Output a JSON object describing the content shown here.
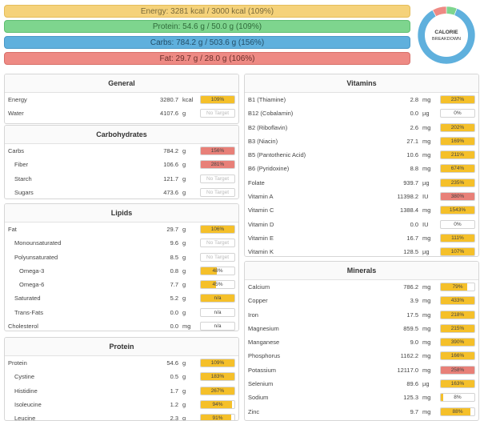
{
  "summary": {
    "energy": "Energy: 3281 kcal / 3000 kcal (109%)",
    "protein": "Protein: 54.6 g / 50.0 g (109%)",
    "carbs": "Carbs: 784.2 g / 503.6 g (156%)",
    "fat": "Fat: 29.7 g / 28.0 g (106%)"
  },
  "donut": {
    "label_line1": "CALORIE",
    "label_line2": "BREAKDOWN",
    "segments": [
      {
        "name": "protein",
        "fraction": 0.06,
        "color": "#7ed58e"
      },
      {
        "name": "carbs",
        "fraction": 0.86,
        "color": "#5fb0dd"
      },
      {
        "name": "fat",
        "fraction": 0.08,
        "color": "#ee8a84"
      }
    ]
  },
  "colors": {
    "ok": "#f5c02a",
    "over": "#e88078",
    "none": "#ffffff"
  },
  "general": {
    "title": "General",
    "rows": [
      {
        "name": "Energy",
        "amount": "3280.7",
        "unit": "kcal",
        "pct": "109%",
        "fill": 1.0,
        "status": "ok",
        "indent": 0
      },
      {
        "name": "Water",
        "amount": "4107.6",
        "unit": "g",
        "pct": "No Target",
        "fill": 0,
        "status": "none",
        "indent": 0
      }
    ]
  },
  "carbohydrates": {
    "title": "Carbohydrates",
    "rows": [
      {
        "name": "Carbs",
        "amount": "784.2",
        "unit": "g",
        "pct": "156%",
        "fill": 1.0,
        "status": "over",
        "indent": 0
      },
      {
        "name": "Fiber",
        "amount": "106.6",
        "unit": "g",
        "pct": "281%",
        "fill": 1.0,
        "status": "over",
        "indent": 1
      },
      {
        "name": "Starch",
        "amount": "121.7",
        "unit": "g",
        "pct": "No Target",
        "fill": 0,
        "status": "none",
        "indent": 1
      },
      {
        "name": "Sugars",
        "amount": "473.6",
        "unit": "g",
        "pct": "No Target",
        "fill": 0,
        "status": "none",
        "indent": 1
      }
    ]
  },
  "lipids": {
    "title": "Lipids",
    "rows": [
      {
        "name": "Fat",
        "amount": "29.7",
        "unit": "g",
        "pct": "106%",
        "fill": 1.0,
        "status": "ok",
        "indent": 0
      },
      {
        "name": "Monounsaturated",
        "amount": "9.6",
        "unit": "g",
        "pct": "No Target",
        "fill": 0,
        "status": "none",
        "indent": 1
      },
      {
        "name": "Polyunsaturated",
        "amount": "8.5",
        "unit": "g",
        "pct": "No Target",
        "fill": 0,
        "status": "none",
        "indent": 1
      },
      {
        "name": "Omega-3",
        "amount": "0.8",
        "unit": "g",
        "pct": "48%",
        "fill": 0.48,
        "status": "ok",
        "indent": 2
      },
      {
        "name": "Omega-6",
        "amount": "7.7",
        "unit": "g",
        "pct": "45%",
        "fill": 0.45,
        "status": "ok",
        "indent": 2
      },
      {
        "name": "Saturated",
        "amount": "5.2",
        "unit": "g",
        "pct": "n/a",
        "fill": 1.0,
        "status": "ok",
        "indent": 1
      },
      {
        "name": "Trans-Fats",
        "amount": "0.0",
        "unit": "g",
        "pct": "n/a",
        "fill": 0,
        "status": "none",
        "indent": 1
      },
      {
        "name": "Cholesterol",
        "amount": "0.0",
        "unit": "mg",
        "pct": "n/a",
        "fill": 0,
        "status": "none",
        "indent": 0
      }
    ]
  },
  "protein": {
    "title": "Protein",
    "rows": [
      {
        "name": "Protein",
        "amount": "54.6",
        "unit": "g",
        "pct": "109%",
        "fill": 1.0,
        "status": "ok",
        "indent": 0
      },
      {
        "name": "Cystine",
        "amount": "0.5",
        "unit": "g",
        "pct": "183%",
        "fill": 1.0,
        "status": "ok",
        "indent": 1
      },
      {
        "name": "Histidine",
        "amount": "1.7",
        "unit": "g",
        "pct": "267%",
        "fill": 1.0,
        "status": "ok",
        "indent": 1
      },
      {
        "name": "Isoleucine",
        "amount": "1.2",
        "unit": "g",
        "pct": "94%",
        "fill": 0.94,
        "status": "ok",
        "indent": 1
      },
      {
        "name": "Leucine",
        "amount": "2.3",
        "unit": "g",
        "pct": "91%",
        "fill": 0.91,
        "status": "ok",
        "indent": 1
      }
    ]
  },
  "vitamins": {
    "title": "Vitamins",
    "rows": [
      {
        "name": "B1 (Thiamine)",
        "amount": "2.8",
        "unit": "mg",
        "pct": "237%",
        "fill": 1.0,
        "status": "ok",
        "indent": 0
      },
      {
        "name": "B12 (Cobalamin)",
        "amount": "0.0",
        "unit": "µg",
        "pct": "0%",
        "fill": 0,
        "status": "none",
        "indent": 0
      },
      {
        "name": "B2 (Riboflavin)",
        "amount": "2.6",
        "unit": "mg",
        "pct": "202%",
        "fill": 1.0,
        "status": "ok",
        "indent": 0
      },
      {
        "name": "B3 (Niacin)",
        "amount": "27.1",
        "unit": "mg",
        "pct": "169%",
        "fill": 1.0,
        "status": "ok",
        "indent": 0
      },
      {
        "name": "B5 (Pantothenic Acid)",
        "amount": "10.6",
        "unit": "mg",
        "pct": "211%",
        "fill": 1.0,
        "status": "ok",
        "indent": 0
      },
      {
        "name": "B6 (Pyridoxine)",
        "amount": "8.8",
        "unit": "mg",
        "pct": "674%",
        "fill": 1.0,
        "status": "ok",
        "indent": 0
      },
      {
        "name": "Folate",
        "amount": "939.7",
        "unit": "µg",
        "pct": "235%",
        "fill": 1.0,
        "status": "ok",
        "indent": 0
      },
      {
        "name": "Vitamin A",
        "amount": "11398.2",
        "unit": "IU",
        "pct": "380%",
        "fill": 1.0,
        "status": "over",
        "indent": 0
      },
      {
        "name": "Vitamin C",
        "amount": "1388.4",
        "unit": "mg",
        "pct": "1543%",
        "fill": 1.0,
        "status": "ok",
        "indent": 0
      },
      {
        "name": "Vitamin D",
        "amount": "0.0",
        "unit": "IU",
        "pct": "0%",
        "fill": 0,
        "status": "none",
        "indent": 0
      },
      {
        "name": "Vitamin E",
        "amount": "16.7",
        "unit": "mg",
        "pct": "111%",
        "fill": 1.0,
        "status": "ok",
        "indent": 0
      },
      {
        "name": "Vitamin K",
        "amount": "128.5",
        "unit": "µg",
        "pct": "107%",
        "fill": 1.0,
        "status": "ok",
        "indent": 0
      }
    ]
  },
  "minerals": {
    "title": "Minerals",
    "rows": [
      {
        "name": "Calcium",
        "amount": "786.2",
        "unit": "mg",
        "pct": "79%",
        "fill": 0.79,
        "status": "ok",
        "indent": 0
      },
      {
        "name": "Copper",
        "amount": "3.9",
        "unit": "mg",
        "pct": "433%",
        "fill": 1.0,
        "status": "ok",
        "indent": 0
      },
      {
        "name": "Iron",
        "amount": "17.5",
        "unit": "mg",
        "pct": "218%",
        "fill": 1.0,
        "status": "ok",
        "indent": 0
      },
      {
        "name": "Magnesium",
        "amount": "859.5",
        "unit": "mg",
        "pct": "215%",
        "fill": 1.0,
        "status": "ok",
        "indent": 0
      },
      {
        "name": "Manganese",
        "amount": "9.0",
        "unit": "mg",
        "pct": "390%",
        "fill": 1.0,
        "status": "ok",
        "indent": 0
      },
      {
        "name": "Phosphorus",
        "amount": "1162.2",
        "unit": "mg",
        "pct": "166%",
        "fill": 1.0,
        "status": "ok",
        "indent": 0
      },
      {
        "name": "Potassium",
        "amount": "12117.0",
        "unit": "mg",
        "pct": "258%",
        "fill": 1.0,
        "status": "over",
        "indent": 0
      },
      {
        "name": "Selenium",
        "amount": "89.6",
        "unit": "µg",
        "pct": "163%",
        "fill": 1.0,
        "status": "ok",
        "indent": 0
      },
      {
        "name": "Sodium",
        "amount": "125.3",
        "unit": "mg",
        "pct": "8%",
        "fill": 0.08,
        "status": "ok",
        "indent": 0
      },
      {
        "name": "Zinc",
        "amount": "9.7",
        "unit": "mg",
        "pct": "88%",
        "fill": 0.88,
        "status": "ok",
        "indent": 0
      }
    ]
  }
}
